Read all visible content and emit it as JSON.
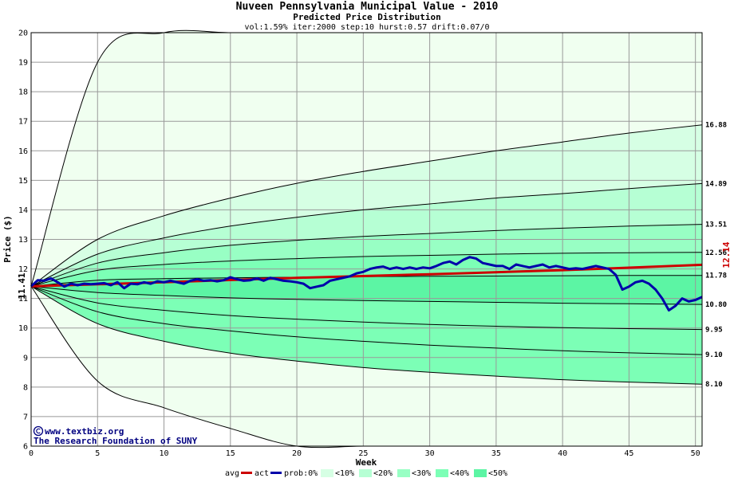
{
  "chart_data": {
    "type": "area",
    "title": "Nuveen Pennsylvania Municipal Value - 2010",
    "subtitle": "Predicted Price Distribution",
    "params": "vol:1.59% iter:2000 step:10 hurst:0.57 drift:0.07/0",
    "xlabel": "Week",
    "ylabel": "Price ($)",
    "xlim": [
      0,
      50.5
    ],
    "ylim": [
      6,
      20
    ],
    "x_ticks": [
      0,
      5,
      10,
      15,
      20,
      25,
      30,
      35,
      40,
      45,
      50
    ],
    "y_ticks": [
      6,
      7,
      8,
      9,
      10,
      11,
      12,
      13,
      14,
      15,
      16,
      17,
      18,
      19,
      20
    ],
    "start_price": 11.41,
    "start_label": "11.41",
    "end_avg_label": "12.14",
    "end_avg_value": 12.14,
    "end_actual_value": 11.05,
    "right_labels": [
      "16.88",
      "14.89",
      "13.51",
      "12.56",
      "11.78",
      "10.80",
      "9.95",
      "9.10",
      "8.10"
    ],
    "bands": {
      "weeks": [
        0,
        5,
        10,
        15,
        20,
        25,
        30,
        35,
        40,
        45,
        50.5
      ],
      "outer_upper": [
        11.41,
        19.0,
        20.0,
        20.0,
        20.0,
        20.0,
        20.0,
        20.0,
        20.0,
        20.0,
        20.0
      ],
      "outer_lower": [
        11.41,
        8.2,
        7.3,
        6.6,
        6.0,
        6.0,
        6.0,
        6.0,
        6.0,
        6.0,
        6.0
      ],
      "upper": [
        [
          11.41,
          13.0,
          13.8,
          14.4,
          14.9,
          15.3,
          15.65,
          16.0,
          16.3,
          16.6,
          16.88
        ],
        [
          11.41,
          12.5,
          13.05,
          13.45,
          13.75,
          14.0,
          14.2,
          14.4,
          14.55,
          14.72,
          14.89
        ],
        [
          11.41,
          12.2,
          12.55,
          12.8,
          12.97,
          13.1,
          13.2,
          13.3,
          13.38,
          13.45,
          13.51
        ],
        [
          11.41,
          11.95,
          12.15,
          12.27,
          12.35,
          12.42,
          12.46,
          12.5,
          12.53,
          12.55,
          12.56
        ],
        [
          11.41,
          11.62,
          11.67,
          11.7,
          11.72,
          11.74,
          11.75,
          11.76,
          11.77,
          11.78,
          11.78
        ]
      ],
      "lower": [
        [
          11.41,
          11.2,
          11.1,
          11.02,
          10.97,
          10.93,
          10.9,
          10.87,
          10.84,
          10.82,
          10.8
        ],
        [
          11.41,
          10.85,
          10.6,
          10.42,
          10.3,
          10.2,
          10.12,
          10.06,
          10.01,
          9.98,
          9.95
        ],
        [
          11.41,
          10.55,
          10.15,
          9.9,
          9.7,
          9.55,
          9.42,
          9.32,
          9.23,
          9.16,
          9.1
        ],
        [
          11.41,
          10.15,
          9.55,
          9.15,
          8.88,
          8.66,
          8.5,
          8.37,
          8.25,
          8.17,
          8.1
        ]
      ]
    },
    "series": [
      {
        "name": "avg",
        "color": "#cc0000",
        "x": [
          0,
          10,
          20,
          30,
          40,
          50.5
        ],
        "y": [
          11.41,
          11.55,
          11.7,
          11.82,
          11.96,
          12.14
        ]
      },
      {
        "name": "act",
        "color": "#0000aa",
        "x": [
          0,
          0.5,
          1,
          1.5,
          2,
          2.5,
          3,
          3.5,
          4,
          4.5,
          5,
          5.5,
          6,
          6.5,
          7,
          7.5,
          8,
          8.5,
          9,
          9.5,
          10,
          10.5,
          11,
          11.5,
          12,
          12.5,
          13,
          13.5,
          14,
          14.5,
          15,
          15.5,
          16,
          16.5,
          17,
          17.5,
          18,
          18.5,
          19,
          19.5,
          20,
          20.5,
          21,
          21.5,
          22,
          22.5,
          23,
          23.5,
          24,
          24.5,
          25,
          25.5,
          26,
          26.5,
          27,
          27.5,
          28,
          28.5,
          29,
          29.5,
          30,
          30.5,
          31,
          31.5,
          32,
          32.5,
          33,
          33.5,
          34,
          34.5,
          35,
          35.5,
          36,
          36.5,
          37,
          37.5,
          38,
          38.5,
          39,
          39.5,
          40,
          40.5,
          41,
          41.5,
          42,
          42.5,
          43,
          43.5,
          44,
          44.5,
          45,
          45.5,
          46,
          46.5,
          47,
          47.5,
          48,
          48.5,
          49,
          49.5,
          50,
          50.5
        ],
        "y": [
          11.41,
          11.62,
          11.6,
          11.68,
          11.55,
          11.4,
          11.5,
          11.45,
          11.5,
          11.48,
          11.5,
          11.52,
          11.45,
          11.55,
          11.35,
          11.5,
          11.48,
          11.55,
          11.5,
          11.58,
          11.55,
          11.6,
          11.55,
          11.5,
          11.6,
          11.65,
          11.6,
          11.62,
          11.58,
          11.62,
          11.72,
          11.65,
          11.6,
          11.62,
          11.68,
          11.6,
          11.7,
          11.65,
          11.6,
          11.58,
          11.55,
          11.5,
          11.35,
          11.4,
          11.45,
          11.6,
          11.65,
          11.7,
          11.75,
          11.85,
          11.9,
          12.0,
          12.05,
          12.08,
          12.0,
          12.05,
          12.0,
          12.05,
          12.0,
          12.05,
          12.02,
          12.1,
          12.2,
          12.25,
          12.15,
          12.3,
          12.4,
          12.35,
          12.2,
          12.15,
          12.1,
          12.1,
          12.0,
          12.15,
          12.1,
          12.05,
          12.1,
          12.15,
          12.05,
          12.1,
          12.05,
          12.0,
          12.02,
          12.0,
          12.05,
          12.1,
          12.05,
          12.0,
          11.8,
          11.3,
          11.4,
          11.55,
          11.6,
          11.5,
          11.3,
          11.0,
          10.6,
          10.75,
          11.0,
          10.9,
          10.95,
          11.05
        ]
      }
    ],
    "legend": {
      "avg": "avg",
      "act": "act",
      "prob": "prob:0%",
      "b10": "<10%",
      "b20": "<20%",
      "b30": "<30%",
      "b40": "<40%",
      "b50": "<50%"
    },
    "band_colors": [
      "#f0fff0",
      "#d6ffe4",
      "#b6ffd4",
      "#98ffc4",
      "#7cffb6",
      "#5cf5a4"
    ],
    "credits": [
      "www.textbiz.org",
      "The Research Foundation of SUNY"
    ]
  }
}
